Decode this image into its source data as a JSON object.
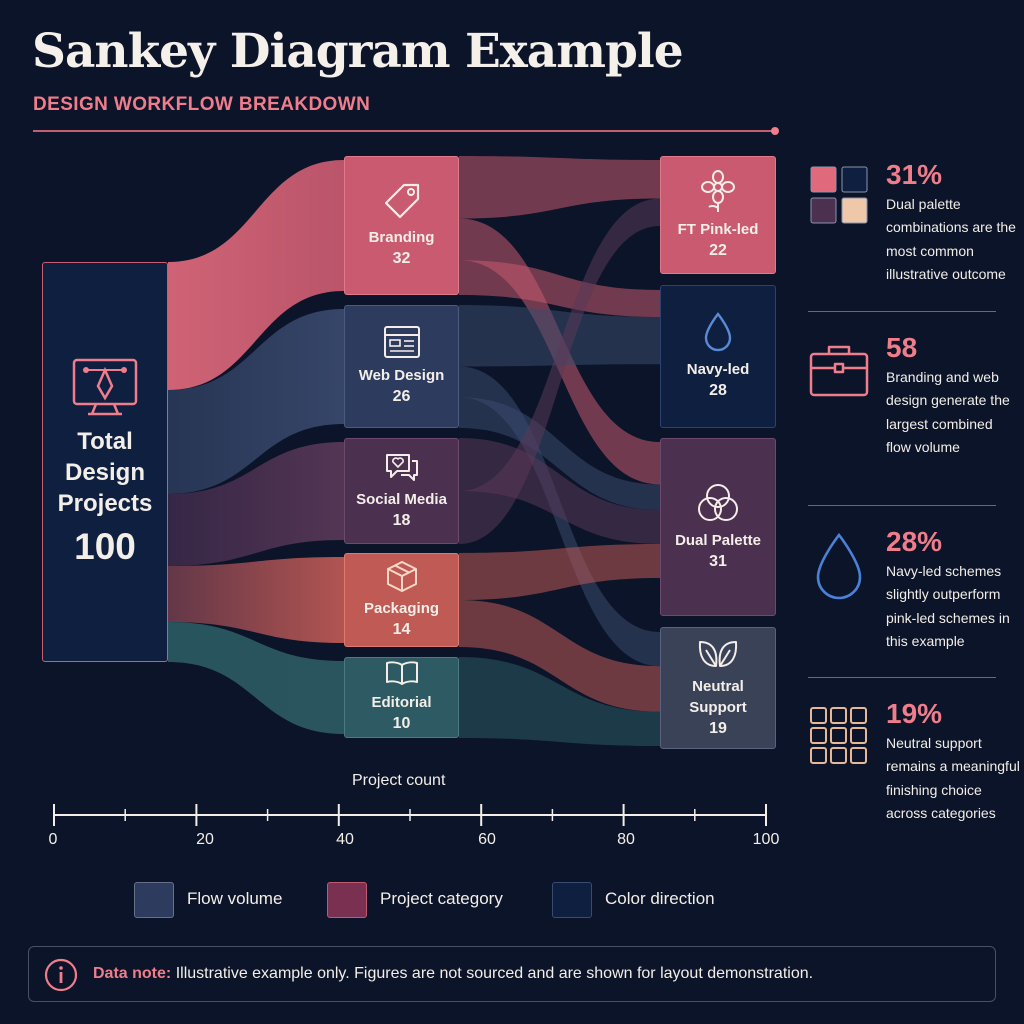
{
  "header": {
    "title": "Sankey Diagram Example",
    "subtitle": "DESIGN WORKFLOW BREAKDOWN"
  },
  "colors": {
    "background": "#0b1428",
    "accent_pink": "#ef7d8b",
    "branding": "#c95a70",
    "web_design": "#2c3b5e",
    "social_media": "#4c3050",
    "packaging": "#c05a55",
    "editorial": "#2d5a63",
    "pink_led": "#c95a70",
    "navy_led": "#0e1f3f",
    "dual_palette": "#4c3050",
    "neutral": "#3a4258"
  },
  "chart_data": {
    "type": "sankey",
    "source": {
      "label": "Total Design Projects",
      "value": 100,
      "icon": "monitor-pen-icon"
    },
    "categories": [
      {
        "id": "branding",
        "label": "Branding",
        "value": 32,
        "icon": "tag-icon"
      },
      {
        "id": "web_design",
        "label": "Web Design",
        "value": 26,
        "icon": "browser-window-icon"
      },
      {
        "id": "social_media",
        "label": "Social Media",
        "value": 18,
        "icon": "chat-heart-icon"
      },
      {
        "id": "packaging",
        "label": "Packaging",
        "value": 14,
        "icon": "box-icon"
      },
      {
        "id": "editorial",
        "label": "Editorial",
        "value": 10,
        "icon": "open-book-icon"
      }
    ],
    "targets": [
      {
        "id": "pink_led",
        "label": "FT Pink-led",
        "value": 22,
        "icon": "flower-icon"
      },
      {
        "id": "navy_led",
        "label": "Navy-led",
        "value": 28,
        "icon": "drop-icon"
      },
      {
        "id": "dual_palette",
        "label": "Dual Palette",
        "value": 31,
        "icon": "circles-icon"
      },
      {
        "id": "neutral",
        "label": "Neutral Support",
        "value": 19,
        "icon": "leaves-icon"
      }
    ],
    "x_axis": {
      "label": "Project count",
      "range": [
        0,
        100
      ],
      "ticks": [
        "0",
        "20",
        "40",
        "60",
        "80",
        "100"
      ],
      "minor_step": 10
    }
  },
  "insights": [
    {
      "value": "31%",
      "text": "Dual palette combinations are the most common illustrative outcome",
      "icon": "palette-swatches-icon"
    },
    {
      "value": "58",
      "text": "Branding and web design generate the largest combined flow volume",
      "icon": "briefcase-icon"
    },
    {
      "value": "28%",
      "text": "Navy-led schemes slightly outperform pink-led schemes in this example",
      "icon": "drop-icon"
    },
    {
      "value": "19%",
      "text": "Neutral support remains a meaningful finishing choice across categories",
      "icon": "grid-icon"
    }
  ],
  "legend": [
    {
      "label": "Flow volume",
      "color": "#2c3b5e"
    },
    {
      "label": "Project category",
      "color": "#7a3050"
    },
    {
      "label": "Color direction",
      "color": "#0e1f3f"
    }
  ],
  "note": {
    "label": "Data note:",
    "text": "Illustrative example only. Figures are not sourced and are shown for layout demonstration."
  }
}
